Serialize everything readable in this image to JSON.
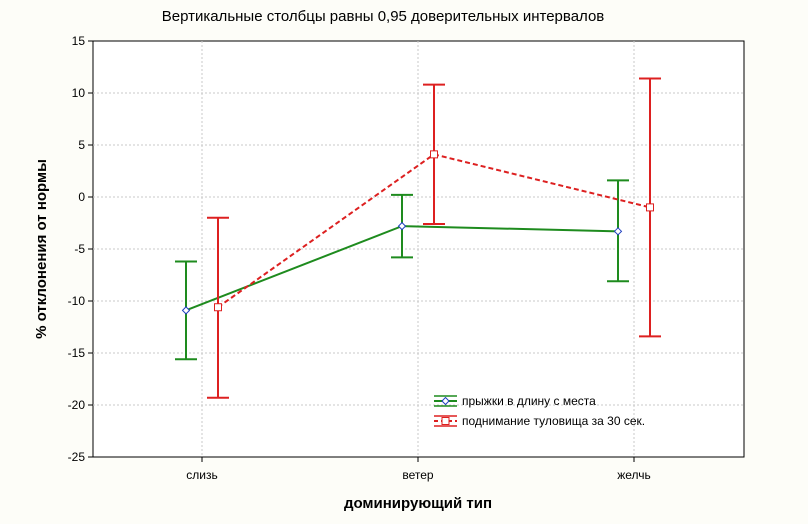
{
  "chart_data": {
    "type": "line",
    "title": "Вертикальные столбцы равны 0,95 доверительных интервалов",
    "xlabel": "доминирующий тип",
    "ylabel": "% отклонения от нормы",
    "categories": [
      "слизь",
      "ветер",
      "желчь"
    ],
    "ylim": [
      -25,
      15
    ],
    "yticks": [
      15,
      10,
      5,
      0,
      -5,
      -10,
      -15,
      -20,
      -25
    ],
    "grid": true,
    "legend_position": "bottom-right",
    "series": [
      {
        "name": "прыжки в длину с места",
        "color": "#1e8b1e",
        "marker": "diamond",
        "line_style": "solid",
        "values": [
          -10.9,
          -2.8,
          -3.3
        ],
        "ci_lower": [
          -15.6,
          -5.8,
          -8.1
        ],
        "ci_upper": [
          -6.2,
          0.2,
          1.6
        ]
      },
      {
        "name": "поднимание туловища за 30 сек.",
        "color": "#dd2020",
        "marker": "square",
        "line_style": "dashed",
        "values": [
          -10.6,
          4.1,
          -1.0
        ],
        "ci_lower": [
          -19.3,
          -2.6,
          -13.4
        ],
        "ci_upper": [
          -2.0,
          10.8,
          11.4
        ]
      }
    ]
  }
}
